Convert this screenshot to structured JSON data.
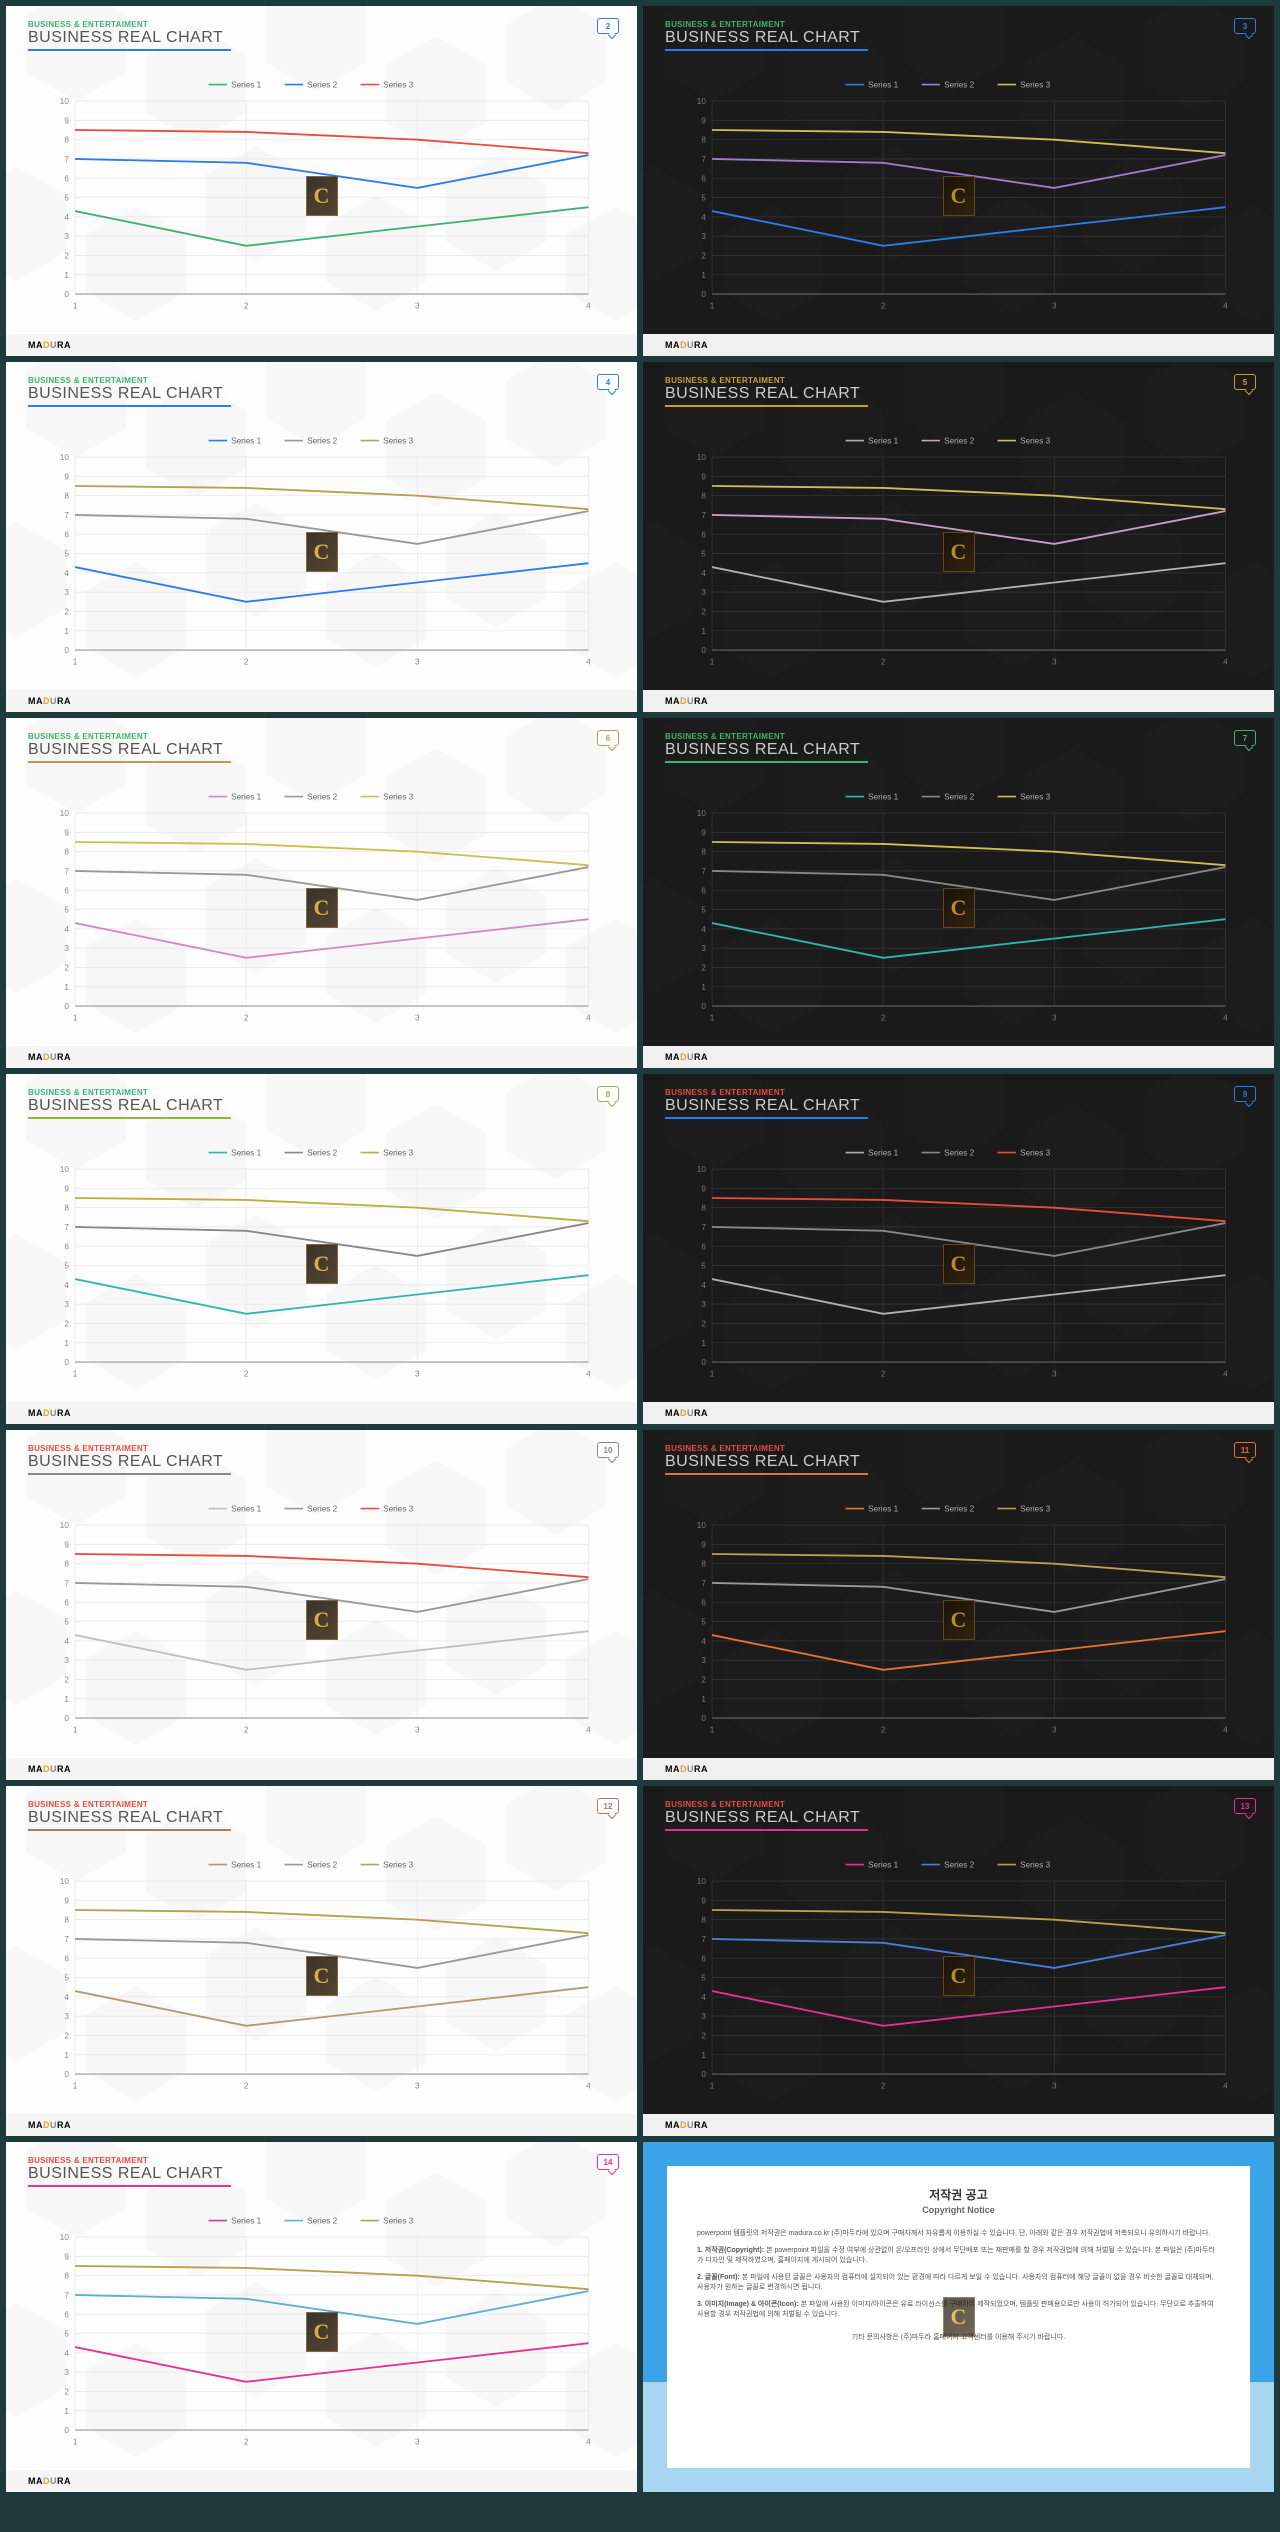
{
  "slides": [
    {
      "theme": "light",
      "accent": "#2b7de9",
      "sub_color": "#3cb371",
      "page": "2",
      "s1": "#3cb371",
      "s2": "#2b7de9",
      "s3": "#e74c3c"
    },
    {
      "theme": "dark",
      "accent": "#2b7de9",
      "sub_color": "#3cb371",
      "page": "3",
      "s1": "#2b7de9",
      "s2": "#9b7fc7",
      "s3": "#c9c152"
    },
    {
      "theme": "light",
      "accent": "#2b7de9",
      "sub_color": "#3cb371",
      "page": "4",
      "s1": "#2b7de9",
      "s2": "#999",
      "s3": "#b8a050"
    },
    {
      "theme": "dark",
      "accent": "#c9a030",
      "sub_color": "#c9a030",
      "page": "5",
      "s1": "#b0b0b0",
      "s2": "#c89fc0",
      "s3": "#c9c152"
    },
    {
      "theme": "light",
      "accent": "#b8a040",
      "sub_color": "#3cb371",
      "page": "6",
      "s1": "#d988b8",
      "s2": "#999",
      "s3": "#c9c152"
    },
    {
      "theme": "dark",
      "accent": "#3cb371",
      "sub_color": "#3cb371",
      "page": "7",
      "s1": "#2fb8a8",
      "s2": "#888",
      "s3": "#c9c152"
    },
    {
      "theme": "light",
      "accent": "#8fb83c",
      "sub_color": "#3cb371",
      "page": "8",
      "s1": "#2fb8a8",
      "s2": "#888",
      "s3": "#b8b040"
    },
    {
      "theme": "dark",
      "accent": "#2b7de9",
      "sub_color": "#e74c3c",
      "page": "9",
      "s1": "#b0b0b0",
      "s2": "#888",
      "s3": "#e74c3c"
    },
    {
      "theme": "light",
      "accent": "#888",
      "sub_color": "#e74c3c",
      "page": "10",
      "s1": "#c0c0c0",
      "s2": "#999",
      "s3": "#e74c3c"
    },
    {
      "theme": "dark",
      "accent": "#e87030",
      "sub_color": "#e74c3c",
      "page": "11",
      "s1": "#e87030",
      "s2": "#999",
      "s3": "#b8a050"
    },
    {
      "theme": "light",
      "accent": "#a08060",
      "sub_color": "#e74c3c",
      "page": "12",
      "s1": "#b89870",
      "s2": "#999",
      "s3": "#b8a050"
    },
    {
      "theme": "dark",
      "accent": "#e8308f",
      "sub_color": "#e74c3c",
      "page": "13",
      "s1": "#e8308f",
      "s2": "#4a7fd8",
      "s3": "#b8a050"
    },
    {
      "theme": "light",
      "accent": "#e8308f",
      "sub_color": "#e74c3c",
      "page": "14",
      "s1": "#e8308f",
      "s2": "#5ab0d8",
      "s3": "#b8a050"
    }
  ],
  "chart": {
    "type": "line",
    "subtitle": "BUSINESS & ENTERTAIMENT",
    "title": "BUSINESS REAL CHART",
    "series_labels": [
      "Series 1",
      "Series 2",
      "Series 3"
    ],
    "x": [
      1,
      2,
      3,
      4
    ],
    "s1_vals": [
      4.3,
      2.5,
      3.5,
      4.5
    ],
    "s2_vals": [
      7.0,
      6.8,
      5.5,
      7.2
    ],
    "s3_vals": [
      8.5,
      8.4,
      8.0,
      7.3
    ],
    "ylim": [
      0,
      10
    ],
    "ytick_step": 1,
    "grid_color_light": "#e8e8e8",
    "grid_color_dark": "#333"
  },
  "footer_brand": {
    "pre": "MA",
    "mid": "D",
    "mid2": "U",
    "post": "RA"
  },
  "copyright": {
    "title": "저작권 공고",
    "subtitle": "Copyright Notice",
    "p1": "powerpoint 템플릿의 저작권은 madura.co.kr (주)마두라에 있으며 구매자께서 자유롭게 이용하실 수 있습니다. 단, 아래와 같은 경우 저작권법에 저촉되오니 유의하시기 바랍니다.",
    "p2_h": "1. 저작권(Copyright):",
    "p2": "본 powerpoint 파일을 수정 여부에 상관없이 온/오프라인 상에서 무단배포 또는 재판매를 할 경우 저작권법에 의해 처벌될 수 있습니다. 본 파일은 (주)마두라가 디자인 및 제작하였으며, 홈페이지에 게시되어 있습니다.",
    "p3_h": "2. 글꼴(Font):",
    "p3": "본 파일에 사용된 글꼴은 사용자의 컴퓨터에 설치되어 있는 환경에 따라 다르게 보일 수 있습니다. 사용자의 컴퓨터에 해당 글꼴이 없을 경우 비슷한 글꼴로 대체되며, 사용자가 원하는 글꼴로 변경하시면 됩니다.",
    "p4_h": "3. 이미지(Image) & 아이콘(Icon):",
    "p4": "본 파일에 사용된 이미지/아이콘은 유료 라이선스를 구매하여 제작되었으며, 템플릿 판매용으로만 사용이 허가되어 있습니다. 무단으로 추출하여 사용할 경우 저작권법에 의해 처벌될 수 있습니다.",
    "p5": "기타 문의사항은 (주)마두라 홈페이지 고객센터를 이용해 주시기 바랍니다."
  }
}
